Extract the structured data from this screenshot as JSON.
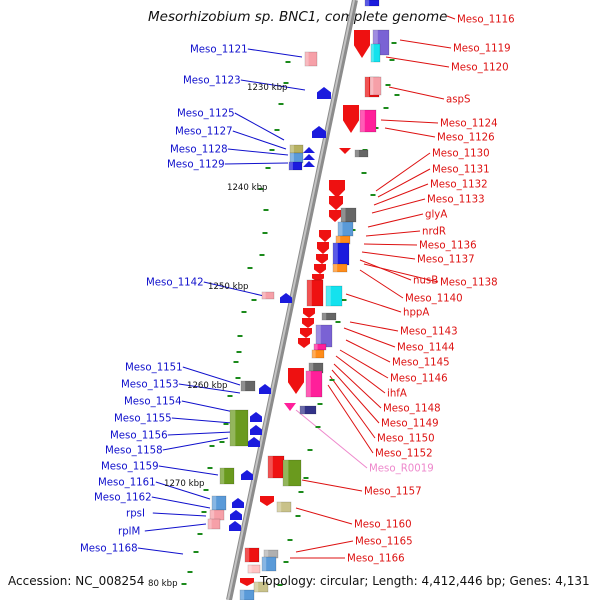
{
  "title": "Mesorhizobium sp. BNC1, complete genome",
  "accession": "Accession: NC_008254",
  "topology": "Topology: circular; Length: 4,412,446 bp; Genes: 4,131",
  "colors": {
    "left_label": "#1010cc",
    "right_label": "#dd1111",
    "rna_label": "#ee88cc",
    "backbone": "#8c8c8c",
    "tick": "#1b8a1b"
  },
  "scale_labels": [
    "1230 kbp",
    "1240 kbp",
    "1250 kbp",
    "1260 kbp",
    "1270 kbp",
    "80 kbp"
  ],
  "left_labels": [
    "Meso_1121",
    "Meso_1123",
    "Meso_1125",
    "Meso_1127",
    "Meso_1128",
    "Meso_1129",
    "Meso_1142",
    "Meso_1151",
    "Meso_1153",
    "Meso_1154",
    "Meso_1155",
    "Meso_1156",
    "Meso_1158",
    "Meso_1159",
    "Meso_1161",
    "Meso_1162",
    "rpsI",
    "rplM",
    "Meso_1168"
  ],
  "right_labels": [
    "Meso_1116",
    "Meso_1119",
    "Meso_1120",
    "aspS",
    "Meso_1124",
    "Meso_1126",
    "Meso_1130",
    "Meso_1131",
    "Meso_1132",
    "Meso_1133",
    "glyA",
    "nrdR",
    "Meso_1136",
    "Meso_1137",
    "nusB",
    "Meso_1138",
    "Meso_1140",
    "hppA",
    "Meso_1143",
    "Meso_1144",
    "Meso_1145",
    "Meso_1146",
    "ihfA",
    "Meso_1148",
    "Meso_1149",
    "Meso_1150",
    "Meso_1152",
    "Meso_R0019",
    "Meso_1157",
    "Meso_1160",
    "Meso_1165",
    "Meso_1166"
  ]
}
